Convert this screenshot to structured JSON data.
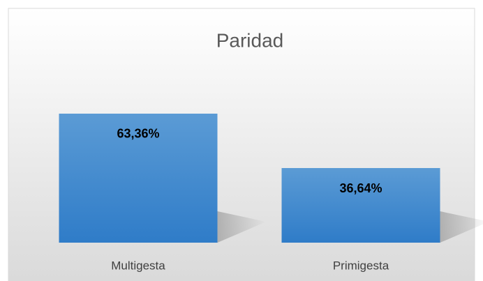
{
  "chart_data": {
    "type": "bar",
    "title": "Paridad",
    "categories": [
      "Multigesta",
      "Primigesta"
    ],
    "values": [
      63.36,
      36.64
    ],
    "value_labels": [
      "63,36%",
      "36,64%"
    ],
    "color": "#3d85cf"
  }
}
